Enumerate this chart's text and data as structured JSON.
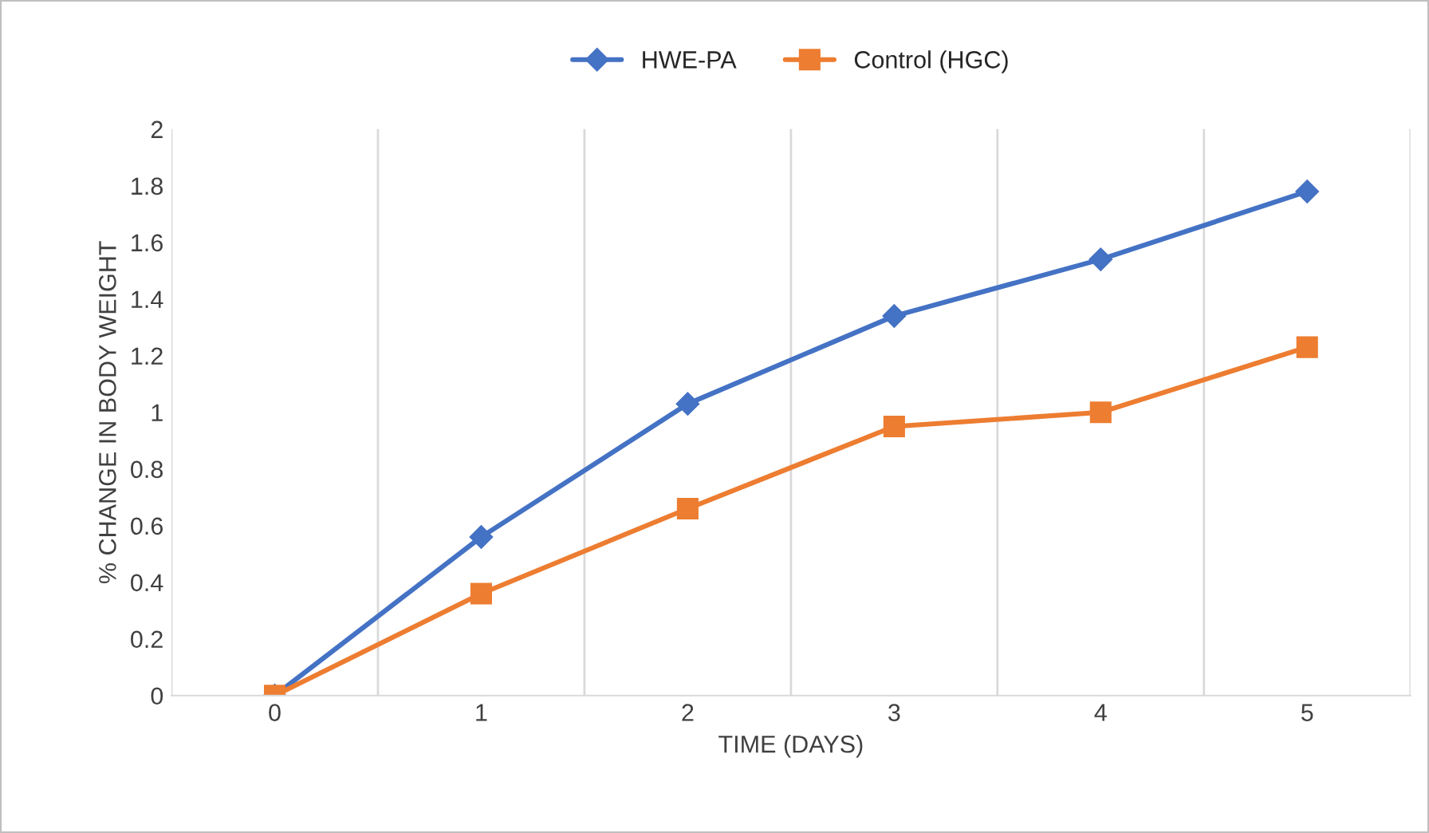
{
  "chart_data": {
    "type": "line",
    "xlabel": "TIME (DAYS)",
    "ylabel": "% CHANGE IN BODY WEIGHT",
    "categories": [
      "0",
      "1",
      "2",
      "3",
      "4",
      "5"
    ],
    "series": [
      {
        "name": "HWE-PA",
        "color": "#4472c4",
        "marker": "diamond",
        "values": [
          0,
          0.56,
          1.03,
          1.34,
          1.54,
          1.78
        ]
      },
      {
        "name": "Control (HGC)",
        "color": "#ed7d31",
        "marker": "square",
        "values": [
          0,
          0.36,
          0.66,
          0.95,
          1.0,
          1.23
        ]
      }
    ],
    "ylim": [
      0,
      2
    ],
    "yticks": [
      0,
      0.2,
      0.4,
      0.6,
      0.8,
      1,
      1.2,
      1.4,
      1.6,
      1.8,
      2
    ],
    "grid": "x",
    "legend": "top",
    "line_style": "solid"
  }
}
